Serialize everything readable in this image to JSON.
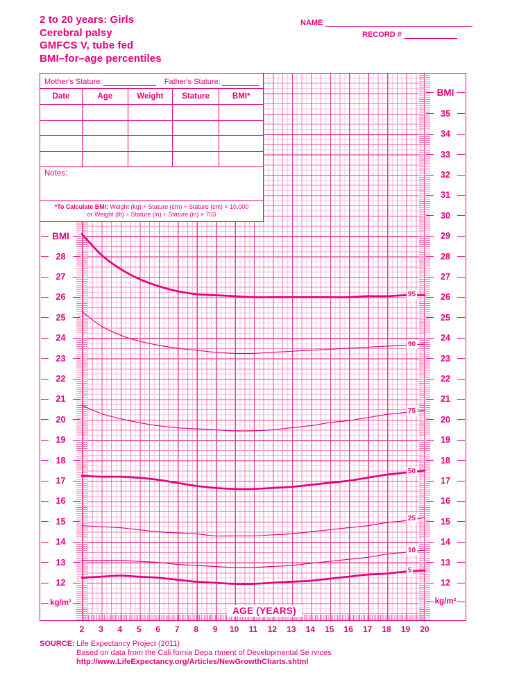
{
  "header": {
    "title_lines": [
      "2 to 20 years: Girls",
      "Cerebral palsy",
      "GMFCS V, tube fed",
      "BMI–for–age percentiles"
    ],
    "name_label": "NAME",
    "record_label": "RECORD #"
  },
  "form": {
    "mother_stature_label": "Mother's Stature:",
    "father_stature_label": "Father's Stature:",
    "columns": [
      "Date",
      "Age",
      "Weight",
      "Stature",
      "BMI*"
    ],
    "empty_rows": 4,
    "notes_label": "Notes:",
    "bmi_note_bold": "*To Calculate BMI:",
    "bmi_note_line1": "Weight (kg) ÷ Stature (cm) ÷ Stature (cm) × 10,000",
    "bmi_note_line2": "or Weight (lb) ÷ Stature (in) ÷ Stature (in) × 703"
  },
  "axes": {
    "left_title": "BMI",
    "right_title": "BMI",
    "unit_left": "kg/m²",
    "unit_right": "kg/m²",
    "x_title": "AGE (YEARS)"
  },
  "source": {
    "label": "SOURCE:",
    "lines": [
      "Life Expectancy Project (2011)",
      "Based on data from the Cali fornia Depa rtment of Developmental Se rvices",
      "http://www.LifeExpectancy.org/Articles/NewGrowthCharts.shtml"
    ]
  },
  "colors": {
    "magenta_text": "#E5007D",
    "curve": "#E5007D",
    "grid_major": "#EA3C97",
    "grid_medium": "#F285BE",
    "grid_minor": "#F9C6DF",
    "tick_marks": "#EE6CAC",
    "background": "#FFFFFF"
  },
  "chart_data": {
    "type": "line",
    "title": "BMI-for-age percentiles, girls 2 to 20 years, cerebral palsy, GMFCS V, tube fed",
    "xlabel": "AGE (YEARS)",
    "ylabel": "BMI (kg/m²)",
    "xlim": [
      2,
      20
    ],
    "ylim": [
      10,
      37
    ],
    "grid": "on",
    "legend_position": "labels at right end of each curve",
    "x_ticks": [
      2,
      3,
      4,
      5,
      6,
      7,
      8,
      9,
      10,
      11,
      12,
      13,
      14,
      15,
      16,
      17,
      18,
      19,
      20
    ],
    "left_axis_ticks": [
      28,
      27,
      26,
      25,
      24,
      23,
      22,
      21,
      20,
      19,
      18,
      17,
      16,
      15,
      14,
      13,
      12
    ],
    "right_axis_ticks": [
      35,
      34,
      33,
      32,
      31,
      30,
      29,
      28,
      27,
      26,
      25,
      24,
      23,
      22,
      21,
      20,
      19,
      18,
      17,
      16,
      15,
      14,
      13,
      12
    ],
    "x": [
      2,
      3,
      4,
      5,
      6,
      7,
      8,
      9,
      10,
      11,
      12,
      13,
      14,
      15,
      16,
      17,
      18,
      19,
      20
    ],
    "series": [
      {
        "name": "95th percentile",
        "label": "95",
        "bold": true,
        "values": [
          29.1,
          28.1,
          27.4,
          26.9,
          26.55,
          26.3,
          26.15,
          26.1,
          26.05,
          26.0,
          26.0,
          26.0,
          26.0,
          26.0,
          26.0,
          26.05,
          26.05,
          26.1,
          26.1
        ]
      },
      {
        "name": "90th percentile",
        "label": "90",
        "bold": false,
        "values": [
          25.3,
          24.6,
          24.15,
          23.85,
          23.65,
          23.5,
          23.4,
          23.3,
          23.25,
          23.25,
          23.3,
          23.35,
          23.4,
          23.45,
          23.5,
          23.55,
          23.6,
          23.65,
          23.7
        ]
      },
      {
        "name": "75th percentile",
        "label": "75",
        "bold": false,
        "values": [
          20.7,
          20.3,
          20.05,
          19.85,
          19.7,
          19.6,
          19.55,
          19.5,
          19.45,
          19.45,
          19.5,
          19.6,
          19.7,
          19.85,
          19.95,
          20.1,
          20.25,
          20.35,
          20.45
        ]
      },
      {
        "name": "50th percentile",
        "label": "50",
        "bold": true,
        "values": [
          17.25,
          17.2,
          17.2,
          17.15,
          17.05,
          16.9,
          16.75,
          16.65,
          16.6,
          16.6,
          16.65,
          16.7,
          16.8,
          16.9,
          17.0,
          17.15,
          17.3,
          17.4,
          17.5
        ]
      },
      {
        "name": "25th percentile",
        "label": "25",
        "bold": false,
        "values": [
          14.8,
          14.75,
          14.7,
          14.6,
          14.5,
          14.45,
          14.4,
          14.3,
          14.3,
          14.3,
          14.35,
          14.4,
          14.5,
          14.6,
          14.7,
          14.8,
          14.95,
          15.05,
          15.2
        ]
      },
      {
        "name": "10th percentile",
        "label": "10",
        "bold": false,
        "values": [
          13.1,
          13.1,
          13.1,
          13.05,
          13.0,
          12.9,
          12.85,
          12.8,
          12.75,
          12.75,
          12.8,
          12.85,
          12.95,
          13.05,
          13.15,
          13.25,
          13.4,
          13.5,
          13.6
        ]
      },
      {
        "name": "5th percentile",
        "label": "5",
        "bold": true,
        "values": [
          12.25,
          12.3,
          12.35,
          12.3,
          12.25,
          12.15,
          12.05,
          12.0,
          11.95,
          11.95,
          12.0,
          12.05,
          12.1,
          12.2,
          12.3,
          12.4,
          12.45,
          12.55,
          12.6
        ]
      }
    ]
  }
}
